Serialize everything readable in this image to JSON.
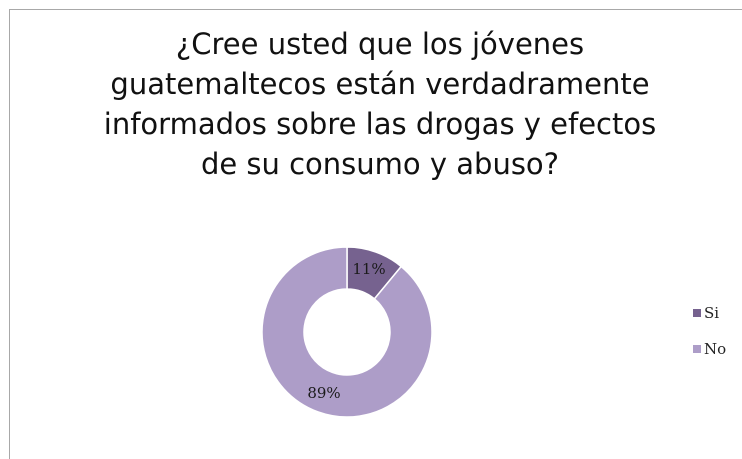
{
  "chart_data": {
    "type": "pie",
    "style": "donut",
    "title": "¿Cree usted que los jóvenes guatemaltecos están verdadramente informados sobre las drogas y efectos de su consumo y abuso?",
    "title_lines": [
      "¿Cree usted que los jóvenes",
      "guatemaltecos están verdadramente",
      "informados sobre las drogas y efectos",
      "de su consumo y abuso?"
    ],
    "categories": [
      "Si",
      "No"
    ],
    "values": [
      11,
      89
    ],
    "data_labels": [
      "11%",
      "89%"
    ],
    "colors": [
      "#76628f",
      "#ad9dc8"
    ],
    "legend_position": "right"
  }
}
